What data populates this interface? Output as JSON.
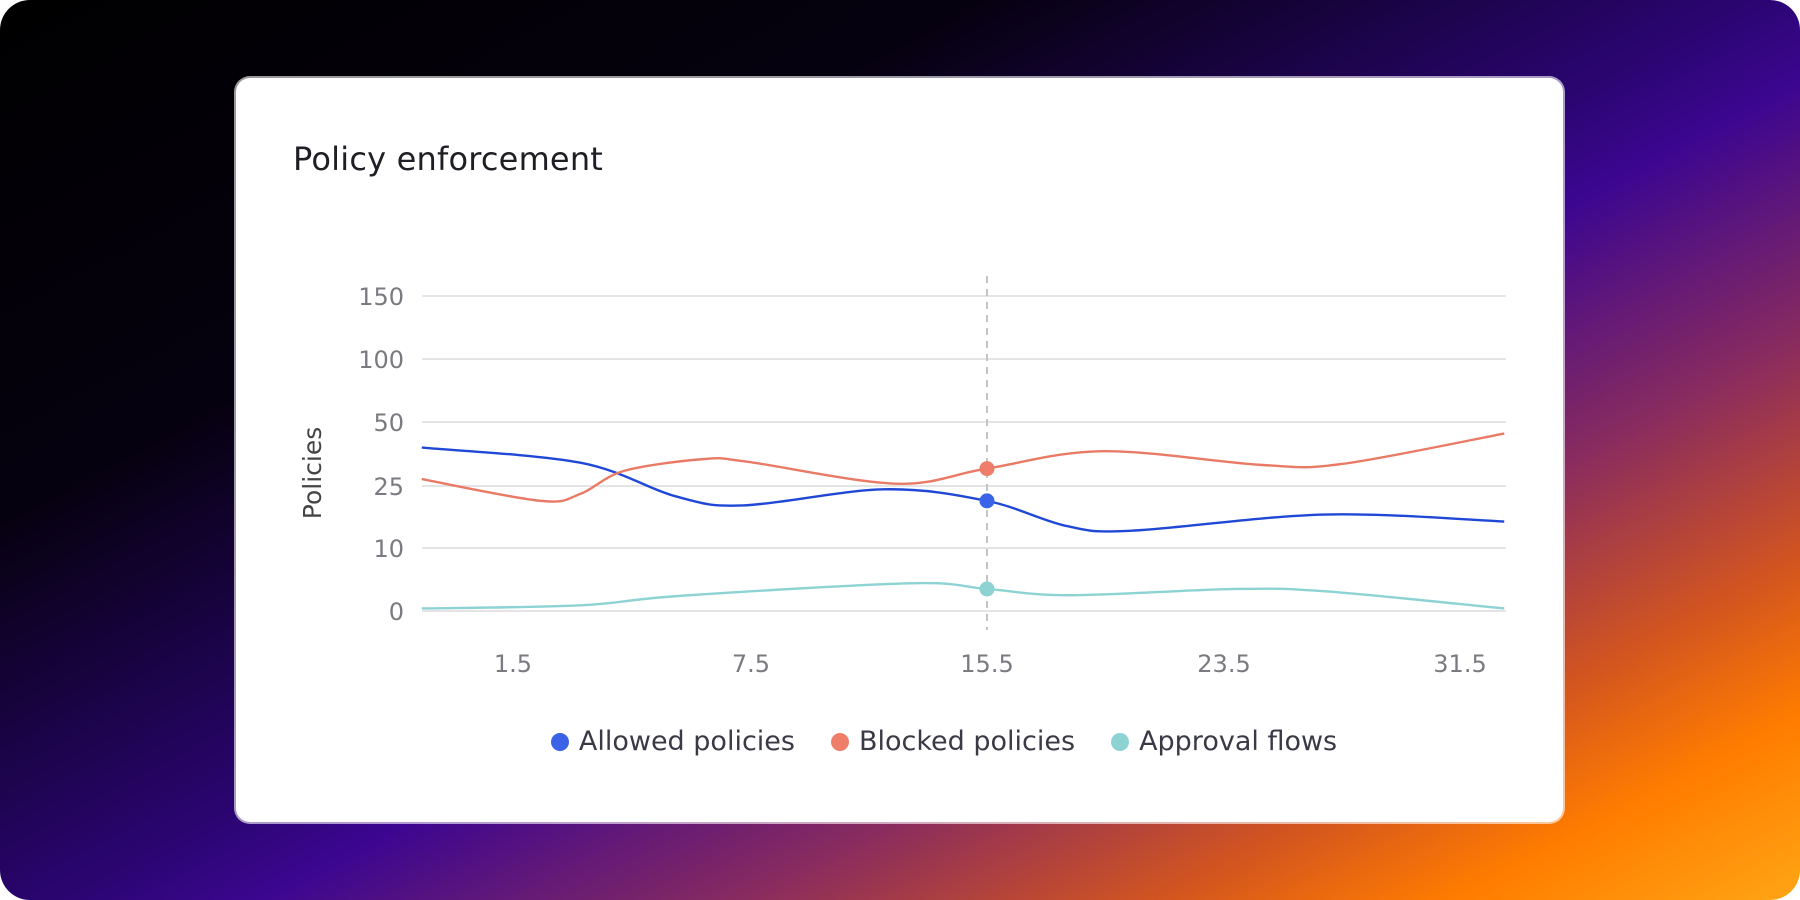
{
  "chart_data": {
    "type": "line",
    "title": "Policy enforcement",
    "ylabel": "Policies",
    "xlabel": "",
    "x_ticks": [
      1.5,
      7.5,
      15.5,
      23.5,
      31.5
    ],
    "x_range": [
      -0.8,
      33.0
    ],
    "y_ticks": [
      0,
      10,
      25,
      50,
      100,
      150
    ],
    "grid": true,
    "legend_position": "bottom",
    "highlight_x": 15.5,
    "series": [
      {
        "name": "Allowed policies",
        "color": "#1f48d6",
        "marker_color": "#3a63e8",
        "x": [
          -0.8,
          3.2,
          5.6,
          7.3,
          12.0,
          15.5,
          18.2,
          20.4,
          26.9,
          33.0
        ],
        "y": [
          40,
          34.1,
          22.5,
          20.3,
          24.2,
          21.4,
          15.3,
          14.2,
          18.1,
          16.4
        ]
      },
      {
        "name": "Blocked policies",
        "color": "#e97b66",
        "marker_color": "#ee7e6a",
        "x": [
          -0.8,
          2.2,
          3.2,
          4.3,
          6.3,
          7.4,
          12.4,
          15.5,
          19.4,
          24.8,
          27.5,
          33.0
        ],
        "y": [
          27.7,
          21.4,
          23.1,
          30.9,
          35.5,
          34.5,
          25.9,
          31.8,
          38.6,
          33.2,
          33.6,
          45.5
        ]
      },
      {
        "name": "Approval flows",
        "color": "#8dd3d3",
        "marker_color": "#8dd3d3",
        "x": [
          -0.8,
          3.2,
          5.7,
          12.9,
          15.5,
          18.3,
          23.9,
          27.0,
          33.0
        ],
        "y": [
          0.4,
          0.9,
          2.4,
          4.4,
          3.5,
          2.5,
          3.5,
          3.1,
          0.4
        ]
      }
    ]
  }
}
